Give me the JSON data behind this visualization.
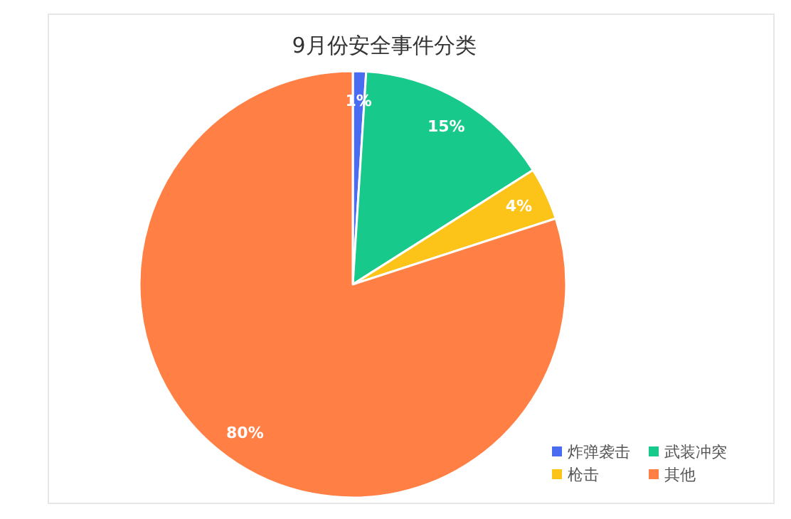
{
  "chart_data": {
    "type": "pie",
    "title": "9月份安全事件分类",
    "categories": [
      "炸弹袭击",
      "武装冲突",
      "枪击",
      "其他"
    ],
    "values": [
      1,
      15,
      4,
      80
    ],
    "colors": [
      "#4a6cf0",
      "#17c98b",
      "#fcc419",
      "#ff7f45"
    ],
    "value_labels": [
      "1%",
      "15%",
      "4%",
      "80%"
    ],
    "legend": "bottom right"
  }
}
